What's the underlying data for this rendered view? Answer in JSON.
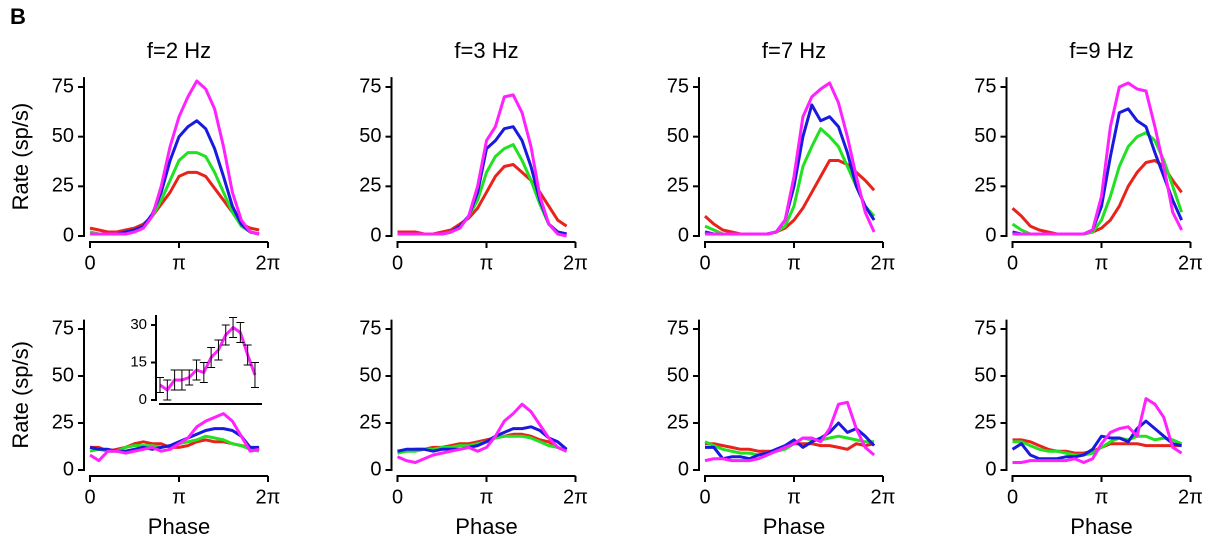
{
  "panel_label": "B",
  "chart_data": [
    {
      "type": "line",
      "title": "f=2 Hz",
      "ylabel": "Rate (sp/s)",
      "xlim": [
        0,
        6.28319
      ],
      "xticks": [
        0,
        {
          "value": 3.14159,
          "label": "π"
        },
        {
          "value": 6.28319,
          "label": "2π"
        }
      ],
      "ylim": [
        0,
        80
      ],
      "yticks": [
        0,
        25,
        50,
        75
      ],
      "x": [
        0,
        0.314,
        0.628,
        0.942,
        1.257,
        1.571,
        1.885,
        2.199,
        2.513,
        2.827,
        3.142,
        3.456,
        3.77,
        4.084,
        4.398,
        4.712,
        5.027,
        5.341,
        5.655,
        5.969
      ],
      "series": [
        {
          "color": "#e8231c",
          "values": [
            4,
            3,
            2,
            2,
            3,
            4,
            6,
            10,
            16,
            22,
            30,
            32,
            32,
            30,
            24,
            18,
            12,
            6,
            4,
            3
          ]
        },
        {
          "color": "#22e022",
          "values": [
            2,
            1,
            1,
            1,
            2,
            3,
            5,
            10,
            18,
            28,
            38,
            42,
            42,
            40,
            32,
            22,
            12,
            5,
            2,
            1
          ]
        },
        {
          "color": "#1a1adf",
          "values": [
            1,
            1,
            1,
            1,
            2,
            3,
            5,
            11,
            22,
            38,
            50,
            55,
            58,
            54,
            44,
            30,
            15,
            6,
            2,
            1
          ]
        },
        {
          "color": "#ff22ff",
          "values": [
            1,
            1,
            1,
            1,
            1,
            2,
            4,
            10,
            25,
            45,
            60,
            70,
            78,
            74,
            64,
            45,
            22,
            8,
            2,
            1
          ]
        }
      ]
    },
    {
      "type": "line",
      "title": "f=3 Hz",
      "xlim": [
        0,
        6.28319
      ],
      "xticks": [
        0,
        {
          "value": 3.14159,
          "label": "π"
        },
        {
          "value": 6.28319,
          "label": "2π"
        }
      ],
      "ylim": [
        0,
        80
      ],
      "yticks": [
        0,
        25,
        50,
        75
      ],
      "x": [
        0,
        0.314,
        0.628,
        0.942,
        1.257,
        1.571,
        1.885,
        2.199,
        2.513,
        2.827,
        3.142,
        3.456,
        3.77,
        4.084,
        4.398,
        4.712,
        5.027,
        5.341,
        5.655,
        5.969
      ],
      "series": [
        {
          "color": "#e8231c",
          "values": [
            2,
            2,
            2,
            1,
            1,
            2,
            3,
            6,
            9,
            14,
            22,
            30,
            35,
            36,
            32,
            28,
            22,
            15,
            8,
            5
          ]
        },
        {
          "color": "#22e022",
          "values": [
            1,
            1,
            1,
            1,
            1,
            1,
            2,
            5,
            10,
            18,
            32,
            40,
            44,
            46,
            38,
            28,
            16,
            6,
            2,
            1
          ]
        },
        {
          "color": "#1a1adf",
          "values": [
            1,
            1,
            1,
            1,
            1,
            1,
            2,
            5,
            10,
            22,
            44,
            48,
            54,
            55,
            48,
            35,
            18,
            6,
            2,
            1
          ]
        },
        {
          "color": "#ff22ff",
          "values": [
            1,
            1,
            1,
            1,
            1,
            1,
            2,
            4,
            10,
            25,
            48,
            55,
            70,
            71,
            62,
            45,
            20,
            6,
            1,
            0
          ]
        }
      ]
    },
    {
      "type": "line",
      "title": "f=7 Hz",
      "xlim": [
        0,
        6.28319
      ],
      "xticks": [
        0,
        {
          "value": 3.14159,
          "label": "π"
        },
        {
          "value": 6.28319,
          "label": "2π"
        }
      ],
      "ylim": [
        0,
        80
      ],
      "yticks": [
        0,
        25,
        50,
        75
      ],
      "x": [
        0,
        0.314,
        0.628,
        0.942,
        1.257,
        1.571,
        1.885,
        2.199,
        2.513,
        2.827,
        3.142,
        3.456,
        3.77,
        4.084,
        4.398,
        4.712,
        5.027,
        5.341,
        5.655,
        5.969
      ],
      "series": [
        {
          "color": "#e8231c",
          "values": [
            10,
            6,
            3,
            2,
            1,
            1,
            1,
            1,
            2,
            4,
            8,
            14,
            22,
            30,
            38,
            38,
            36,
            32,
            28,
            23
          ]
        },
        {
          "color": "#22e022",
          "values": [
            5,
            3,
            1,
            1,
            1,
            1,
            1,
            1,
            2,
            5,
            15,
            35,
            45,
            54,
            50,
            45,
            35,
            25,
            15,
            10
          ]
        },
        {
          "color": "#1a1adf",
          "values": [
            2,
            1,
            1,
            1,
            1,
            1,
            1,
            1,
            2,
            8,
            25,
            50,
            66,
            58,
            60,
            55,
            42,
            25,
            15,
            8
          ]
        },
        {
          "color": "#ff22ff",
          "values": [
            1,
            1,
            1,
            1,
            1,
            1,
            1,
            1,
            2,
            8,
            30,
            60,
            70,
            74,
            77,
            67,
            50,
            30,
            12,
            2
          ]
        }
      ]
    },
    {
      "type": "line",
      "title": "f=9 Hz",
      "xlim": [
        0,
        6.28319
      ],
      "xticks": [
        0,
        {
          "value": 3.14159,
          "label": "π"
        },
        {
          "value": 6.28319,
          "label": "2π"
        }
      ],
      "ylim": [
        0,
        80
      ],
      "yticks": [
        0,
        25,
        50,
        75
      ],
      "x": [
        0,
        0.314,
        0.628,
        0.942,
        1.257,
        1.571,
        1.885,
        2.199,
        2.513,
        2.827,
        3.142,
        3.456,
        3.77,
        4.084,
        4.398,
        4.712,
        5.027,
        5.341,
        5.655,
        5.969
      ],
      "series": [
        {
          "color": "#e8231c",
          "values": [
            14,
            10,
            5,
            3,
            2,
            1,
            1,
            1,
            1,
            2,
            4,
            8,
            15,
            25,
            32,
            37,
            38,
            35,
            28,
            22
          ]
        },
        {
          "color": "#22e022",
          "values": [
            6,
            3,
            1,
            1,
            1,
            1,
            1,
            1,
            1,
            2,
            8,
            20,
            35,
            45,
            50,
            52,
            48,
            38,
            25,
            12
          ]
        },
        {
          "color": "#1a1adf",
          "values": [
            2,
            1,
            1,
            1,
            1,
            1,
            1,
            1,
            1,
            3,
            15,
            40,
            62,
            64,
            58,
            55,
            42,
            30,
            18,
            8
          ]
        },
        {
          "color": "#ff22ff",
          "values": [
            1,
            1,
            1,
            1,
            1,
            1,
            1,
            1,
            1,
            3,
            20,
            55,
            75,
            77,
            74,
            73,
            55,
            35,
            12,
            3
          ]
        }
      ]
    },
    {
      "type": "line",
      "ylabel": "Rate (sp/s)",
      "xlabel": "Phase",
      "xlim": [
        0,
        6.28319
      ],
      "xticks": [
        0,
        {
          "value": 3.14159,
          "label": "π"
        },
        {
          "value": 6.28319,
          "label": "2π"
        }
      ],
      "ylim": [
        0,
        80
      ],
      "yticks": [
        0,
        25,
        50,
        75
      ],
      "x": [
        0,
        0.314,
        0.628,
        0.942,
        1.257,
        1.571,
        1.885,
        2.199,
        2.513,
        2.827,
        3.142,
        3.456,
        3.77,
        4.084,
        4.398,
        4.712,
        5.027,
        5.341,
        5.655,
        5.969
      ],
      "series": [
        {
          "color": "#e8231c",
          "values": [
            12,
            12,
            10,
            11,
            12,
            14,
            15,
            14,
            14,
            12,
            12,
            13,
            15,
            16,
            15,
            15,
            14,
            13,
            12,
            11
          ]
        },
        {
          "color": "#22e022",
          "values": [
            10,
            11,
            10,
            10,
            12,
            13,
            13,
            13,
            12,
            13,
            14,
            15,
            16,
            18,
            17,
            16,
            14,
            13,
            11,
            10
          ]
        },
        {
          "color": "#1a1adf",
          "values": [
            12,
            11,
            11,
            10,
            10,
            11,
            12,
            11,
            12,
            13,
            15,
            17,
            19,
            21,
            22,
            22,
            21,
            18,
            12,
            12
          ]
        },
        {
          "color": "#ff22ff",
          "values": [
            8,
            5,
            10,
            10,
            9,
            10,
            11,
            12,
            10,
            11,
            14,
            17,
            23,
            26,
            28,
            30,
            26,
            18,
            10,
            11
          ]
        }
      ],
      "inset": {
        "type": "line",
        "xlim": [
          0,
          6.28319
        ],
        "ylim": [
          0,
          34
        ],
        "yticks": [
          0,
          15,
          30
        ],
        "x": [
          0,
          0.45,
          0.9,
          1.35,
          1.8,
          2.25,
          2.7,
          3.15,
          3.6,
          4.05,
          4.5,
          4.95,
          5.4,
          5.85
        ],
        "series": [
          {
            "color": "#ff22ff",
            "values": [
              6,
              4,
              8,
              8,
              9,
              12,
              11,
              17,
              20,
              26,
              29,
              27,
              18,
              10
            ],
            "errors": [
              3,
              4,
              4,
              4,
              3,
              4,
              4,
              4,
              4,
              4,
              4,
              4,
              4,
              5
            ]
          }
        ]
      }
    },
    {
      "type": "line",
      "xlabel": "Phase",
      "xlim": [
        0,
        6.28319
      ],
      "xticks": [
        0,
        {
          "value": 3.14159,
          "label": "π"
        },
        {
          "value": 6.28319,
          "label": "2π"
        }
      ],
      "ylim": [
        0,
        80
      ],
      "yticks": [
        0,
        25,
        50,
        75
      ],
      "x": [
        0,
        0.314,
        0.628,
        0.942,
        1.257,
        1.571,
        1.885,
        2.199,
        2.513,
        2.827,
        3.142,
        3.456,
        3.77,
        4.084,
        4.398,
        4.712,
        5.027,
        5.341,
        5.655,
        5.969
      ],
      "series": [
        {
          "color": "#e8231c",
          "values": [
            10,
            10,
            11,
            11,
            12,
            12,
            13,
            14,
            14,
            15,
            16,
            17,
            18,
            19,
            19,
            18,
            16,
            15,
            12,
            10
          ]
        },
        {
          "color": "#22e022",
          "values": [
            9,
            10,
            10,
            11,
            11,
            12,
            12,
            13,
            13,
            14,
            15,
            17,
            18,
            18,
            18,
            17,
            15,
            13,
            12,
            10
          ]
        },
        {
          "color": "#1a1adf",
          "values": [
            10,
            11,
            11,
            11,
            10,
            11,
            11,
            11,
            12,
            13,
            15,
            18,
            20,
            22,
            22,
            23,
            21,
            17,
            15,
            11
          ]
        },
        {
          "color": "#ff22ff",
          "values": [
            7,
            5,
            4,
            6,
            8,
            9,
            10,
            11,
            12,
            10,
            12,
            18,
            26,
            30,
            35,
            31,
            24,
            17,
            12,
            10
          ]
        }
      ]
    },
    {
      "type": "line",
      "xlabel": "Phase",
      "xlim": [
        0,
        6.28319
      ],
      "xticks": [
        0,
        {
          "value": 3.14159,
          "label": "π"
        },
        {
          "value": 6.28319,
          "label": "2π"
        }
      ],
      "ylim": [
        0,
        80
      ],
      "yticks": [
        0,
        25,
        50,
        75
      ],
      "x": [
        0,
        0.314,
        0.628,
        0.942,
        1.257,
        1.571,
        1.885,
        2.199,
        2.513,
        2.827,
        3.142,
        3.456,
        3.77,
        4.084,
        4.398,
        4.712,
        5.027,
        5.341,
        5.655,
        5.969
      ],
      "series": [
        {
          "color": "#e8231c",
          "values": [
            14,
            14,
            13,
            12,
            11,
            11,
            10,
            10,
            10,
            12,
            14,
            14,
            14,
            13,
            13,
            12,
            11,
            14,
            13,
            14
          ]
        },
        {
          "color": "#22e022",
          "values": [
            15,
            13,
            11,
            10,
            9,
            9,
            8,
            9,
            10,
            11,
            14,
            17,
            16,
            16,
            17,
            18,
            17,
            16,
            15,
            15
          ]
        },
        {
          "color": "#1a1adf",
          "values": [
            12,
            12,
            6,
            7,
            7,
            6,
            8,
            9,
            11,
            13,
            16,
            12,
            15,
            17,
            20,
            25,
            20,
            22,
            18,
            13
          ]
        },
        {
          "color": "#ff22ff",
          "values": [
            5,
            6,
            6,
            5,
            5,
            5,
            6,
            8,
            10,
            12,
            14,
            17,
            17,
            15,
            22,
            35,
            36,
            22,
            12,
            8
          ]
        }
      ]
    },
    {
      "type": "line",
      "xlabel": "Phase",
      "xlim": [
        0,
        6.28319
      ],
      "xticks": [
        0,
        {
          "value": 3.14159,
          "label": "π"
        },
        {
          "value": 6.28319,
          "label": "2π"
        }
      ],
      "ylim": [
        0,
        80
      ],
      "yticks": [
        0,
        25,
        50,
        75
      ],
      "x": [
        0,
        0.314,
        0.628,
        0.942,
        1.257,
        1.571,
        1.885,
        2.199,
        2.513,
        2.827,
        3.142,
        3.456,
        3.77,
        4.084,
        4.398,
        4.712,
        5.027,
        5.341,
        5.655,
        5.969
      ],
      "series": [
        {
          "color": "#e8231c",
          "values": [
            16,
            16,
            15,
            13,
            11,
            10,
            10,
            9,
            9,
            10,
            12,
            14,
            14,
            14,
            14,
            13,
            13,
            13,
            13,
            13
          ]
        },
        {
          "color": "#22e022",
          "values": [
            15,
            15,
            13,
            11,
            10,
            10,
            9,
            8,
            8,
            9,
            12,
            15,
            17,
            16,
            18,
            18,
            16,
            17,
            16,
            14
          ]
        },
        {
          "color": "#1a1adf",
          "values": [
            11,
            14,
            8,
            6,
            6,
            6,
            7,
            7,
            8,
            11,
            18,
            17,
            17,
            15,
            22,
            26,
            22,
            18,
            14,
            13
          ]
        },
        {
          "color": "#ff22ff",
          "values": [
            4,
            4,
            5,
            5,
            5,
            5,
            5,
            6,
            4,
            6,
            14,
            20,
            22,
            23,
            18,
            38,
            35,
            28,
            12,
            9
          ]
        }
      ]
    }
  ]
}
